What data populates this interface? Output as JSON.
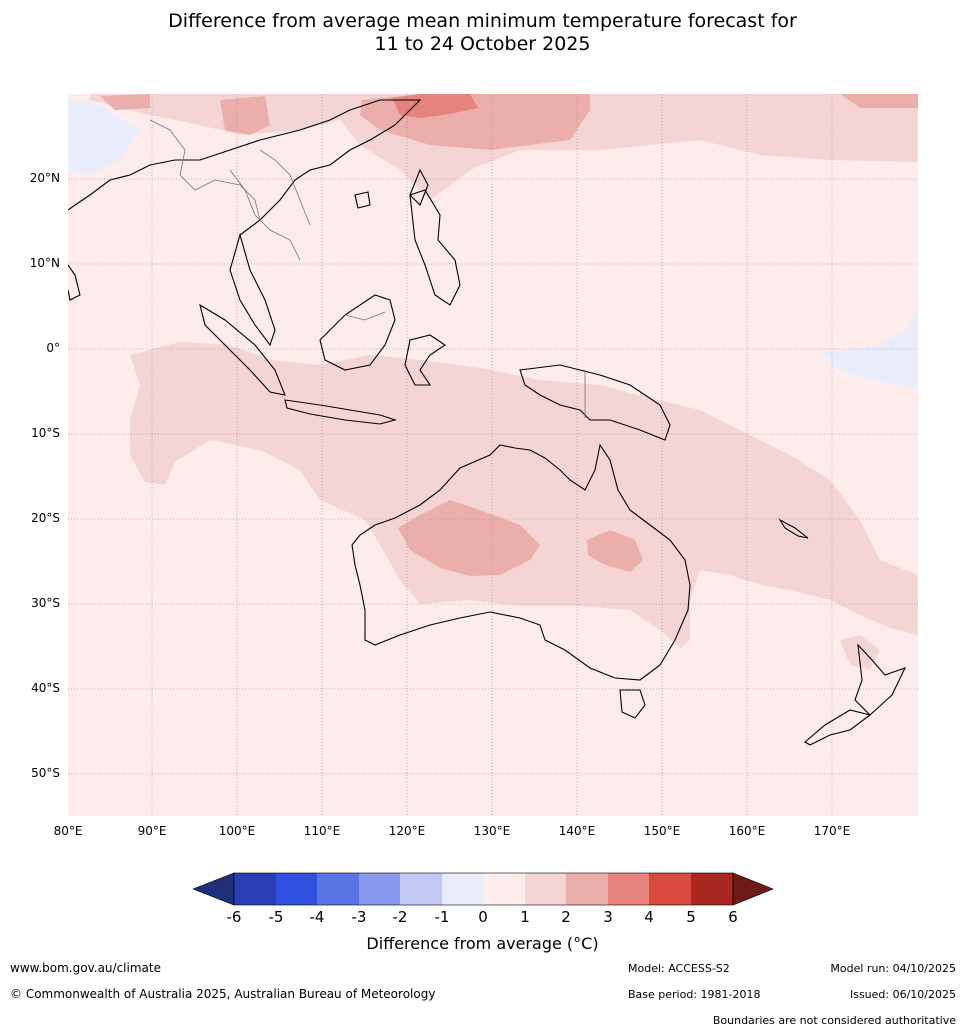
{
  "title_line1": "Difference from average mean minimum temperature forecast for",
  "title_line2": "11 to 24 October 2025",
  "lat_labels": [
    "20°N",
    "10°N",
    "0°",
    "10°S",
    "20°S",
    "30°S",
    "40°S",
    "50°S"
  ],
  "lon_labels": [
    "80°E",
    "90°E",
    "100°E",
    "110°E",
    "120°E",
    "130°E",
    "140°E",
    "150°E",
    "160°E",
    "170°E"
  ],
  "colorbar": {
    "title": "Difference from average (°C)",
    "ticks": [
      "-6",
      "-5",
      "-4",
      "-3",
      "-2",
      "-1",
      "0",
      "1",
      "2",
      "3",
      "4",
      "5",
      "6"
    ],
    "colors": [
      "#1f2f7a",
      "#2a3fb4",
      "#2f50e0",
      "#5b74e6",
      "#8898ee",
      "#c0c8f4",
      "#e8ecfb",
      "#fdeceb",
      "#f5d5d3",
      "#ecaeab",
      "#e6837c",
      "#d94a3f",
      "#a8281f",
      "#6e1a16"
    ]
  },
  "map": {
    "extent": {
      "lon_min": 80,
      "lon_max": 180,
      "lat_min": -55,
      "lat_max": 30
    },
    "background_anomaly": "0 to 1",
    "regions": [
      {
        "name": "south-china-anomaly",
        "range": "3 to 4"
      },
      {
        "name": "central-australia-anomaly",
        "range": "2 to 3"
      },
      {
        "name": "northern-australia-indonesia-band",
        "range": "1 to 2"
      },
      {
        "name": "equatorial-pacific-cool",
        "range": "-1 to 0"
      }
    ]
  },
  "footer": {
    "website": "www.bom.gov.au/climate",
    "copyright": "© Commonwealth of Australia 2025, Australian Bureau of Meteorology",
    "model": "Model: ACCESS-S2",
    "base_period": "Base period: 1981-2018",
    "model_run": "Model run: 04/10/2025",
    "issued": "Issued: 06/10/2025",
    "disclaimer": "Boundaries are not considered authoritative"
  }
}
